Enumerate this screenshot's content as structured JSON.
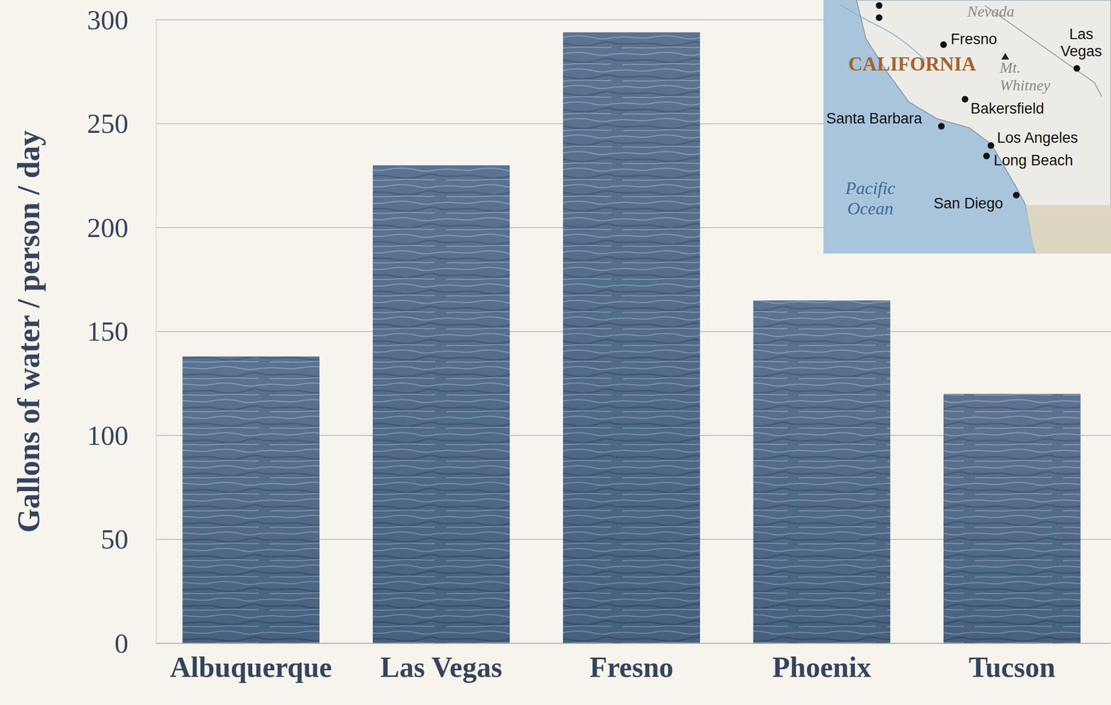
{
  "chart_data": {
    "type": "bar",
    "y_label": "Gallons of water / person / day",
    "categories": [
      "Albuquerque",
      "Las Vegas",
      "Fresno",
      "Phoenix",
      "Tucson"
    ],
    "values": [
      138,
      230,
      294,
      165,
      120
    ],
    "color": "#4d6787",
    "ylim": [
      0,
      300
    ],
    "yticks": [
      0,
      50,
      100,
      150,
      200,
      250,
      300
    ],
    "grid": true,
    "annotations": [
      "Nevada",
      "Fresno",
      "Las Vegas",
      "CALIFORNIA",
      "Mt. Whitney",
      "Bakersfield",
      "Santa Barbara",
      "Los Angeles",
      "Long Beach",
      "Pacific Ocean",
      "San Diego"
    ]
  }
}
